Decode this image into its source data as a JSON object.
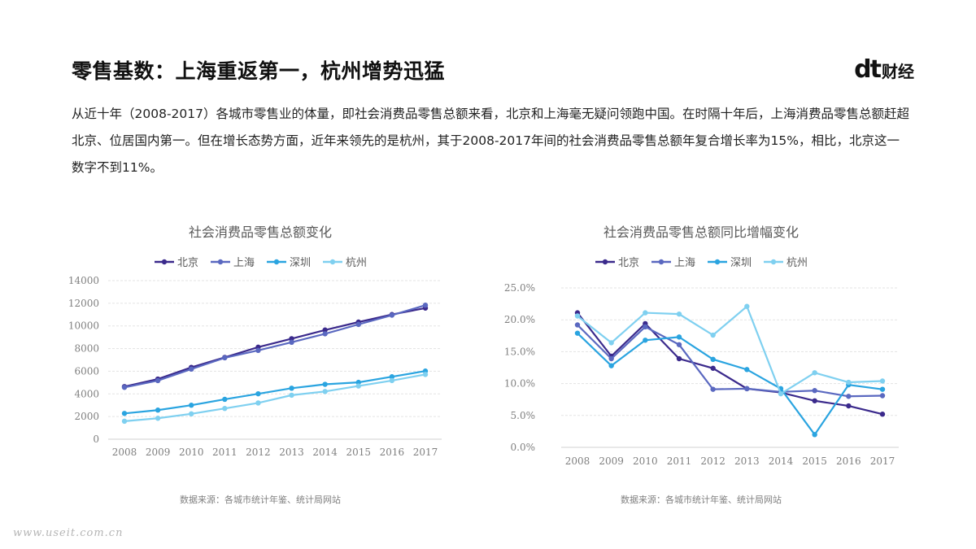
{
  "header": {
    "title": "零售基数：上海重返第一，杭州增势迅猛",
    "brand_mark": "dt",
    "brand_text": "财经"
  },
  "paragraph": "从近十年（2008-2017）各城市零售业的体量，即社会消费品零售总额来看，北京和上海毫无疑问领跑中国。在时隔十年后，上海消费品零售总额赶超北京、位居国内第一。但在增长态势方面，近年来领先的是杭州，其于2008-2017年间的社会消费品零售总额年复合增长率为15%，相比，北京这一数字不到11%。",
  "colors": {
    "北京": "#3b2a8c",
    "上海": "#5a68c0",
    "深圳": "#2aa4e0",
    "杭州": "#7fd0f0"
  },
  "chart_data": [
    {
      "type": "line",
      "title": "社会消费品零售总额变化",
      "x": [
        "2008",
        "2009",
        "2010",
        "2011",
        "2012",
        "2013",
        "2014",
        "2015",
        "2016",
        "2017"
      ],
      "ylim": [
        0,
        14000
      ],
      "yticks": [
        "0",
        "2000",
        "4000",
        "6000",
        "8000",
        "10000",
        "12000",
        "14000"
      ],
      "grid": true,
      "legend": "top",
      "source": "数据来源：各城市统计年鉴、统计局网站",
      "series": [
        {
          "name": "北京",
          "values": [
            4645,
            5310,
            6340,
            7222,
            8124,
            8872,
            9638,
            10338,
            11005,
            11575
          ]
        },
        {
          "name": "上海",
          "values": [
            4577,
            5173,
            6187,
            7185,
            7840,
            8557,
            9303,
            10132,
            10947,
            11830
          ]
        },
        {
          "name": "深圳",
          "values": [
            2277,
            2568,
            3001,
            3521,
            4009,
            4500,
            4844,
            5017,
            5512,
            6016
          ]
        },
        {
          "name": "杭州",
          "values": [
            1589,
            1848,
            2240,
            2712,
            3199,
            3885,
            4212,
            4698,
            5176,
            5717
          ]
        }
      ]
    },
    {
      "type": "line",
      "title": "社会消费品零售总额同比增幅变化",
      "x": [
        "2008",
        "2009",
        "2010",
        "2011",
        "2012",
        "2013",
        "2014",
        "2015",
        "2016",
        "2017"
      ],
      "ylim": [
        0,
        25
      ],
      "yticks": [
        "0.0%",
        "5.0%",
        "10.0%",
        "15.0%",
        "20.0%",
        "25.0%"
      ],
      "grid": true,
      "legend": "top",
      "source": "数据来源：各城市统计年鉴、统计局网站",
      "series": [
        {
          "name": "北京",
          "values": [
            21.1,
            14.3,
            19.4,
            13.9,
            12.4,
            9.2,
            8.6,
            7.3,
            6.5,
            5.2
          ]
        },
        {
          "name": "上海",
          "values": [
            19.2,
            13.9,
            18.9,
            16.1,
            9.1,
            9.2,
            8.7,
            8.9,
            8.0,
            8.1
          ]
        },
        {
          "name": "深圳",
          "values": [
            17.9,
            12.8,
            16.8,
            17.3,
            13.8,
            12.2,
            9.2,
            2.0,
            9.8,
            9.1
          ]
        },
        {
          "name": "杭州",
          "values": [
            20.6,
            16.4,
            21.1,
            20.9,
            17.6,
            22.1,
            8.4,
            11.7,
            10.2,
            10.4
          ]
        }
      ]
    }
  ],
  "footer": {
    "watermark": "www.useit.com.cn"
  }
}
